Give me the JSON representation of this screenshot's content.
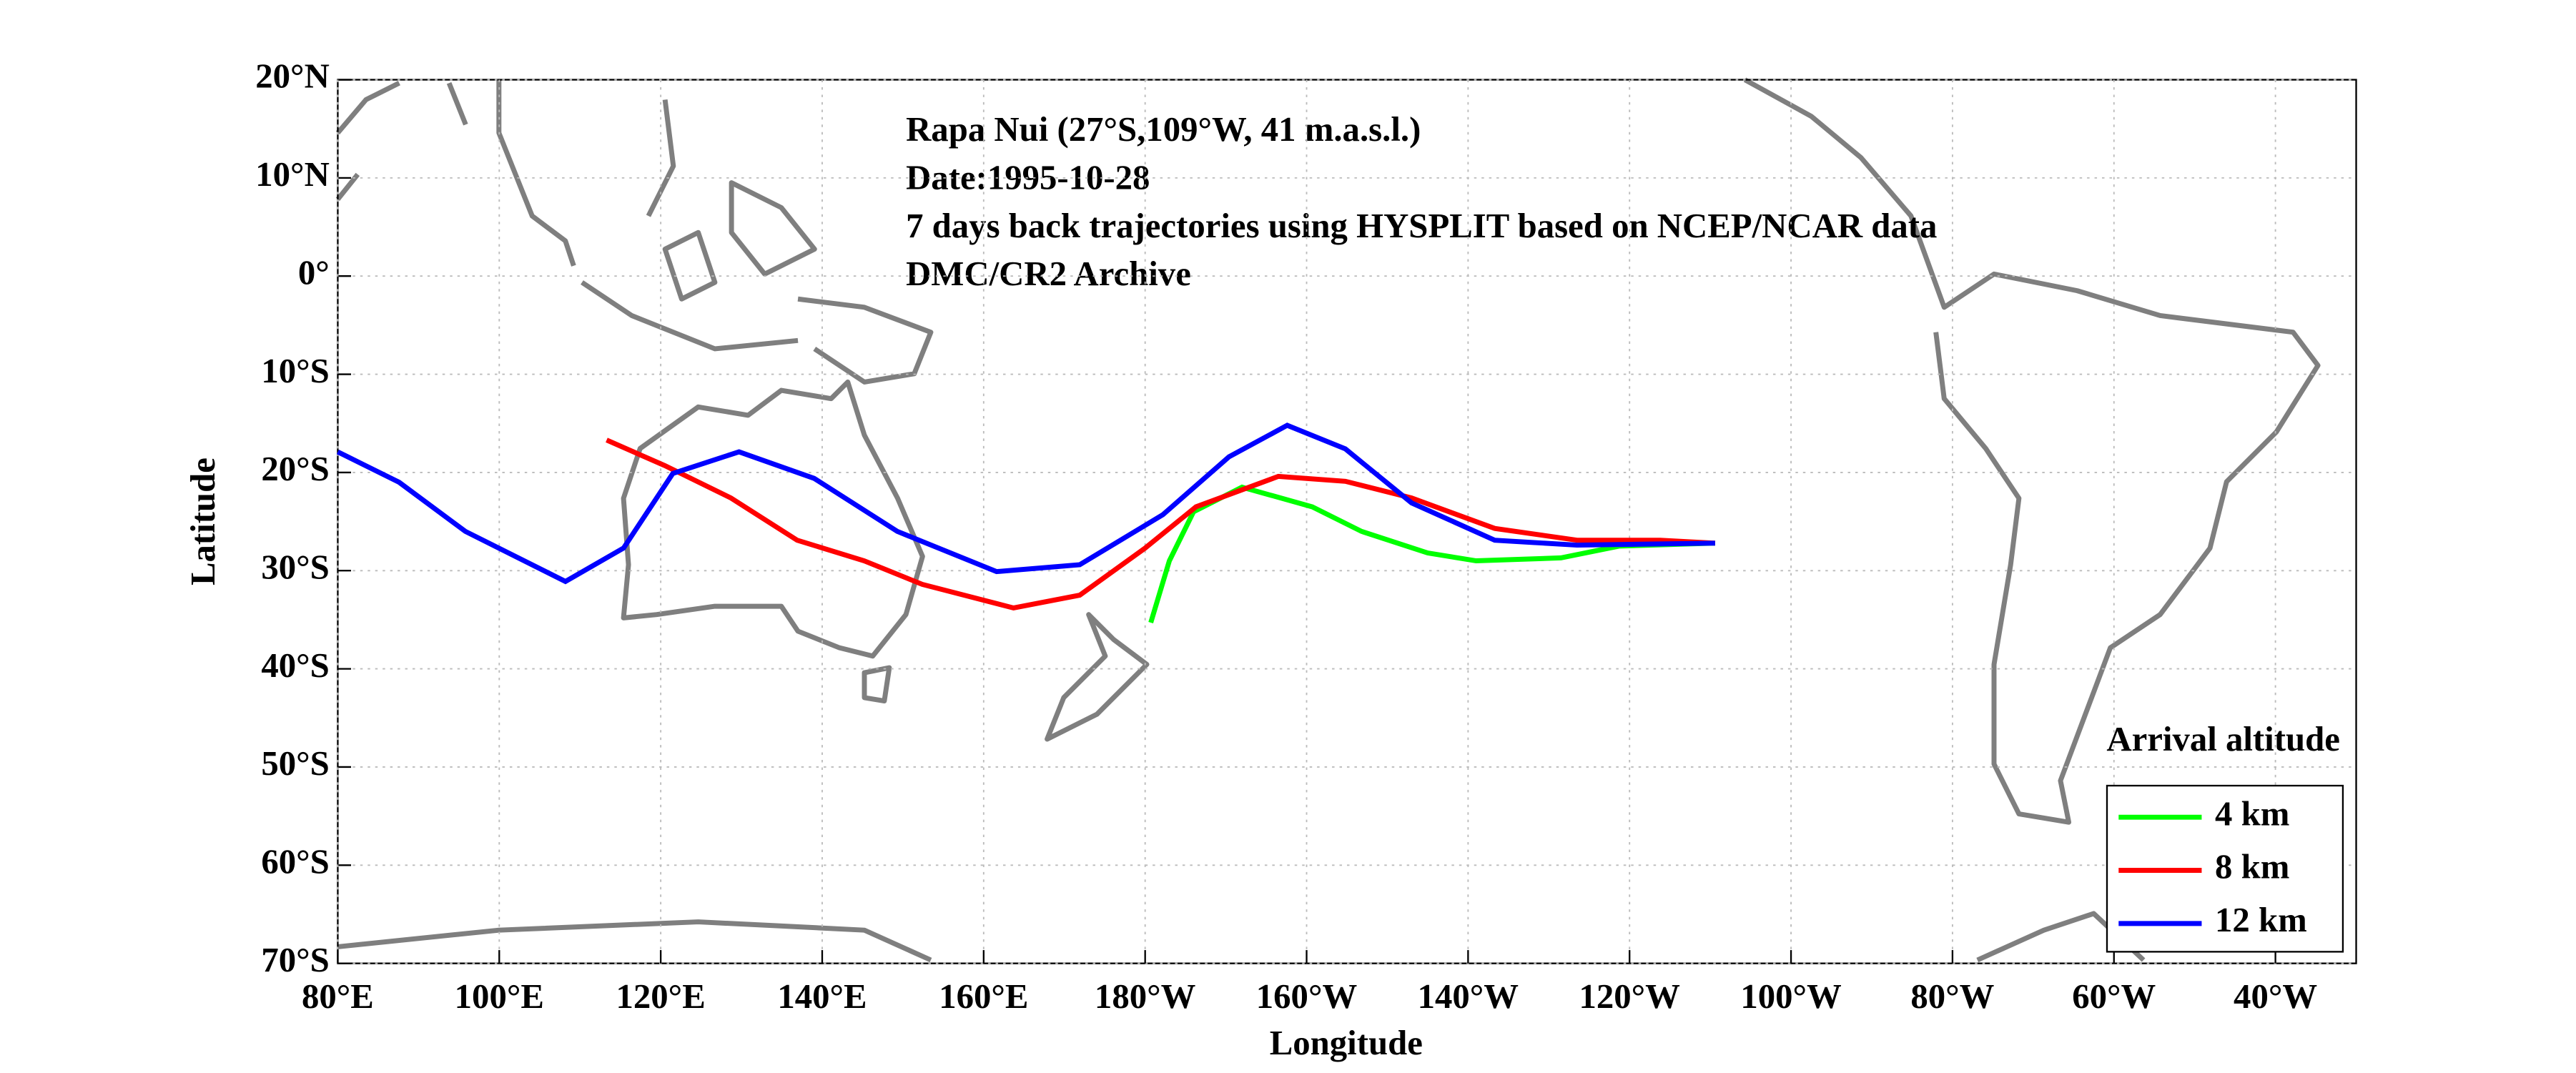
{
  "chart_data": {
    "type": "line",
    "annotations": [
      "Rapa Nui (27°S,109°W, 41 m.a.s.l.)",
      "Date:1995-10-28",
      "7 days back trajectories using HYSPLIT based on NCEP/NCAR data",
      "DMC/CR2 Archive"
    ],
    "xlabel": "Longitude",
    "ylabel": "Latitude",
    "legend_title": "Arrival altitude",
    "legend": "lower right",
    "grid": true,
    "xlim": [
      80,
      330
    ],
    "ylim": [
      -70,
      20
    ],
    "xticks": [
      {
        "value": 80,
        "label": "80°E"
      },
      {
        "value": 100,
        "label": "100°E"
      },
      {
        "value": 120,
        "label": "120°E"
      },
      {
        "value": 140,
        "label": "140°E"
      },
      {
        "value": 160,
        "label": "160°E"
      },
      {
        "value": 180,
        "label": "180°W"
      },
      {
        "value": 200,
        "label": "160°W"
      },
      {
        "value": 220,
        "label": "140°W"
      },
      {
        "value": 240,
        "label": "120°W"
      },
      {
        "value": 260,
        "label": "100°W"
      },
      {
        "value": 280,
        "label": "80°W"
      },
      {
        "value": 300,
        "label": "60°W"
      },
      {
        "value": 320,
        "label": "40°W"
      }
    ],
    "yticks": [
      {
        "value": 20,
        "label": "20°N"
      },
      {
        "value": 10,
        "label": "10°N"
      },
      {
        "value": 0,
        "label": "0°"
      },
      {
        "value": -10,
        "label": "10°S"
      },
      {
        "value": -20,
        "label": "20°S"
      },
      {
        "value": -30,
        "label": "30°S"
      },
      {
        "value": -40,
        "label": "40°S"
      },
      {
        "value": -50,
        "label": "50°S"
      },
      {
        "value": -60,
        "label": "60°S"
      },
      {
        "value": -70,
        "label": "70°S"
      }
    ],
    "series": [
      {
        "name": "4 km",
        "color": "#00ff00",
        "x": [
          180.7,
          183,
          186,
          192,
          200.7,
          206.8,
          215,
          221,
          231.5,
          238.7,
          250.6
        ],
        "values": [
          -35.3,
          -29,
          -24,
          -21.5,
          -23.5,
          -26,
          -28.2,
          -29,
          -28.7,
          -27.5,
          -27.2
        ]
      },
      {
        "name": "8 km",
        "color": "#ff0000",
        "x": [
          113.3,
          120.5,
          128.7,
          136.9,
          145.2,
          152.4,
          163.7,
          171.9,
          180,
          186.3,
          196.5,
          204.8,
          213,
          223.3,
          233.5,
          243.8,
          250.6
        ],
        "values": [
          -16.7,
          -19.3,
          -22.6,
          -26.9,
          -29,
          -31.4,
          -33.8,
          -32.5,
          -27.7,
          -23.5,
          -20.4,
          -20.9,
          -22.6,
          -25.7,
          -26.9,
          -26.9,
          -27.2
        ]
      },
      {
        "name": "12 km",
        "color": "#0000ff",
        "x": [
          80,
          87.6,
          95.8,
          108.2,
          115.4,
          121.5,
          129.7,
          139,
          149.3,
          161.6,
          171.9,
          182.2,
          190.4,
          197.6,
          204.8,
          213,
          223.3,
          233.5,
          250.6
        ],
        "values": [
          -17.9,
          -21,
          -26,
          -31.1,
          -27.7,
          -20.1,
          -17.9,
          -20.6,
          -26,
          -30.1,
          -29.4,
          -24.3,
          -18.4,
          -15.2,
          -17.6,
          -23.1,
          -26.9,
          -27.4,
          -27.2
        ]
      }
    ]
  }
}
